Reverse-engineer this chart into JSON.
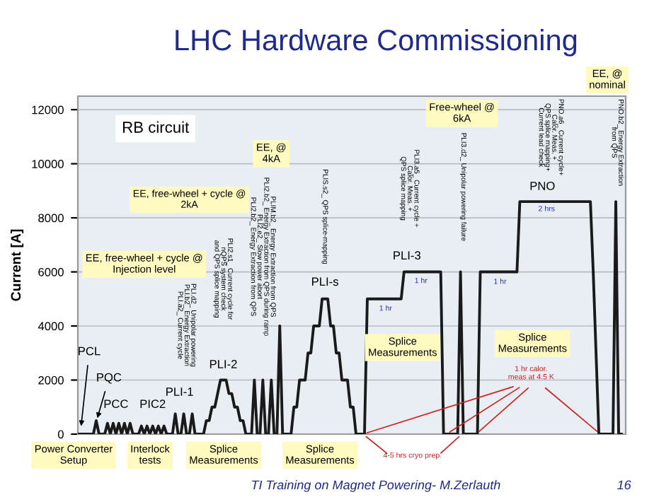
{
  "chart_data": {
    "type": "line",
    "title": "LHC Hardware Commissioning",
    "ylabel": "Current [A]",
    "categories": [
      null,
      null,
      null,
      null,
      null,
      null,
      null,
      null,
      null,
      null,
      null,
      null,
      null,
      null,
      null,
      null,
      null,
      null,
      null,
      null,
      null,
      null,
      null,
      null,
      null,
      null,
      null,
      null,
      null,
      null,
      null,
      null,
      null,
      null,
      null,
      null,
      null,
      null,
      null,
      null,
      null,
      null,
      null,
      null,
      null,
      null,
      null,
      null,
      null,
      null,
      null,
      null,
      null,
      null,
      null,
      null,
      null,
      null,
      null,
      null,
      null,
      null,
      null,
      null,
      null,
      null,
      null,
      null,
      null,
      null,
      null,
      null,
      null,
      null,
      null,
      null,
      null,
      null,
      null,
      null,
      null,
      null,
      null,
      null,
      null,
      null,
      null,
      null,
      null,
      null,
      null,
      null,
      null,
      null,
      null,
      null,
      null,
      null,
      null,
      null,
      null,
      null,
      null,
      null,
      null,
      null,
      null,
      null,
      null,
      null,
      null,
      null,
      null,
      null,
      null,
      null,
      null,
      null,
      null,
      null,
      null,
      null,
      null,
      null,
      null,
      null,
      null,
      null,
      null,
      null,
      null,
      null,
      null,
      null,
      null,
      null,
      null,
      null,
      null,
      null,
      null,
      null,
      null,
      null,
      null,
      null,
      null,
      null,
      null,
      null,
      null,
      null,
      null,
      null,
      null,
      null,
      null,
      null,
      null,
      null,
      null,
      null,
      null,
      null,
      null,
      null,
      null,
      null,
      null,
      null,
      null,
      null,
      null,
      null,
      null,
      null,
      null,
      null,
      null,
      null,
      null,
      null,
      null,
      null,
      null,
      null,
      null,
      null,
      null,
      null,
      null,
      null,
      null
    ],
    "series": [
      {
        "color": "#1a1a1a",
        "values": [
          0,
          0,
          0,
          0,
          0,
          0,
          500,
          0,
          0,
          0,
          400,
          0,
          400,
          0,
          400,
          0,
          400,
          0,
          400,
          0,
          0,
          0,
          300,
          0,
          300,
          0,
          300,
          0,
          300,
          0,
          300,
          0,
          0,
          0,
          750,
          0,
          0,
          750,
          0,
          0,
          750,
          0,
          0,
          0,
          0,
          500,
          500,
          1000,
          1000,
          1500,
          2000,
          2000,
          2000,
          1500,
          1500,
          1000,
          1000,
          500,
          500,
          0,
          0,
          0,
          2000,
          0,
          0,
          2000,
          0,
          0,
          2000,
          0,
          0,
          4000,
          0,
          0,
          0,
          0,
          1000,
          1000,
          2000,
          2000,
          2000,
          3000,
          3000,
          4000,
          4000,
          4000,
          5000,
          5000,
          5000,
          4000,
          4000,
          3000,
          3000,
          2000,
          2000,
          2000,
          1000,
          1000,
          0,
          0,
          0,
          0,
          5000,
          5000,
          5000,
          5000,
          5000,
          5000,
          5000,
          5000,
          5000,
          5000,
          5000,
          5000,
          5000,
          6000,
          6000,
          6000,
          6000,
          6000,
          6000,
          6000,
          6000,
          6000,
          6000,
          6000,
          6000,
          6000,
          6000,
          0,
          0,
          0,
          0,
          0,
          0,
          6000,
          0,
          0,
          0,
          0,
          0,
          0,
          6000,
          6000,
          6000,
          6000,
          6000,
          6000,
          6000,
          6000,
          6000,
          6000,
          6000,
          6000,
          6000,
          6000,
          8600,
          8600,
          8600,
          8600,
          8600,
          8600,
          8600,
          8600,
          8600,
          8600,
          8600,
          8600,
          8600,
          8600,
          8600,
          8600,
          8600,
          8600,
          8600,
          8600,
          8600,
          8600,
          8600,
          8600,
          8600,
          8600,
          6000,
          3000,
          0,
          0,
          0,
          0,
          0,
          0,
          8600,
          0,
          0
        ]
      }
    ],
    "ylim": [
      0,
      12500
    ],
    "yticks": [
      0,
      2000,
      4000,
      6000,
      8000,
      10000,
      12000
    ],
    "tick_labels": "y",
    "grid": "y",
    "marker": "none",
    "line_style": "solid",
    "annotations": [
      "PCL",
      "PQC",
      "PCC",
      "PIC2",
      "PLI-1",
      "PLI-2",
      "PLI-s",
      "PLI-3",
      "PNO",
      "2 hrs",
      "1 hr",
      "1 hr",
      "1 hr",
      "PLI.d2_ Unipolar powering\nPLI.b2_ Energy Extraction\nPLI.a2_ Current cycle",
      "PLI2.s1_ Current cycle for\nnQPS system check\nand QPS splice mapping",
      "PLIM.b2_ Energy Extraction from QPS\nPLI2.b2_ Energy Extraction from QPS during ramp\nPLI2.e2_ Slow power abort\nPLI2.b2_ Energy Extraction from QPS",
      "PLIS.s2_ QPS splice-mapping",
      "PLI3.a5_ Current cycle +\nCalor. Meas. +\nQPS splice mapping",
      "PLI3.d2_ Unipolar powering failure",
      "PNO.a6_ Current cycle+\nCalor. Meas. +\nQPS splice mapping+\nCurrent lead check",
      "PNO.b2_ Energy Extraction\nfrom QPS",
      "RB circuit",
      "EE, free-wheel + cycle @\nInjection level",
      "EE, free-wheel + cycle @\n2kA",
      "EE, @\n4kA",
      "Free-wheel @\n6kA",
      "EE, @\nnominal",
      "Splice\nMeasurements",
      "Splice\nMeasurements",
      "Power Converter\nSetup",
      "Interlock\ntests",
      "Splice\nMeasurements",
      "Splice\nMeasurements",
      "1 hr calor.\nmeas at 4.5 K",
      "4-5 hrs cryo prep.",
      "TI Training on Magnet Powering- M.Zerlauth",
      "16"
    ]
  }
}
